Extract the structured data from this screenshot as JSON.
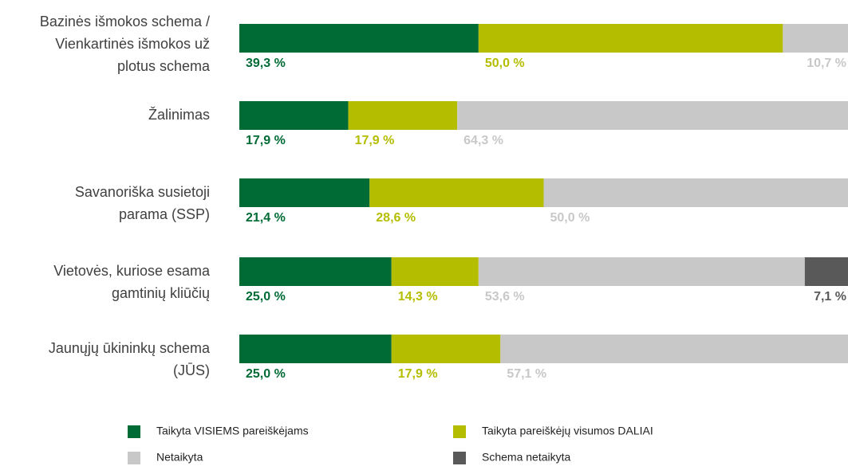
{
  "chart_data": {
    "type": "stacked-bar-horizontal",
    "categories": [
      [
        "Bazinės išmokos schema /",
        "Vienkartinės išmokos už",
        "plotus schema"
      ],
      [
        "Žalinimas"
      ],
      [
        "Savanoriška susietoji",
        "parama (SSP)"
      ],
      [
        "Vietovės, kuriose esama",
        "gamtinių kliūčių"
      ],
      [
        "Jaunųjų ūkininkų schema",
        "(JŪS)"
      ]
    ],
    "xlim": [
      0,
      100
    ],
    "legend": "bottom",
    "series": [
      {
        "name": "Taikyta VISIEMS pareiškėjams",
        "color": "#006b35",
        "values": [
          39.3,
          17.9,
          21.4,
          25.0,
          25.0
        ],
        "value_labels": [
          "39,3 %",
          "17,9 %",
          "21,4 %",
          "25,0 %",
          "25,0 %"
        ]
      },
      {
        "name": "Taikyta pareiškėjų visumos DALIAI",
        "color": "#b5bd00",
        "values": [
          50.0,
          17.9,
          28.6,
          14.3,
          17.9
        ],
        "value_labels": [
          "50,0 %",
          "17,9 %",
          "28,6 %",
          "14,3 %",
          "17,9 %"
        ]
      },
      {
        "name": "Netaikyta",
        "color": "#c8c8c8",
        "values": [
          10.7,
          64.3,
          50.0,
          53.6,
          57.1
        ],
        "value_labels": [
          "10,7 %",
          "64,3 %",
          "50,0 %",
          "53,6 %",
          "57,1 %"
        ]
      },
      {
        "name": "Schema netaikyta",
        "color": "#595959",
        "values": [
          null,
          null,
          null,
          7.1,
          null
        ],
        "value_labels": [
          null,
          null,
          null,
          "7,1 %",
          null
        ]
      }
    ]
  }
}
